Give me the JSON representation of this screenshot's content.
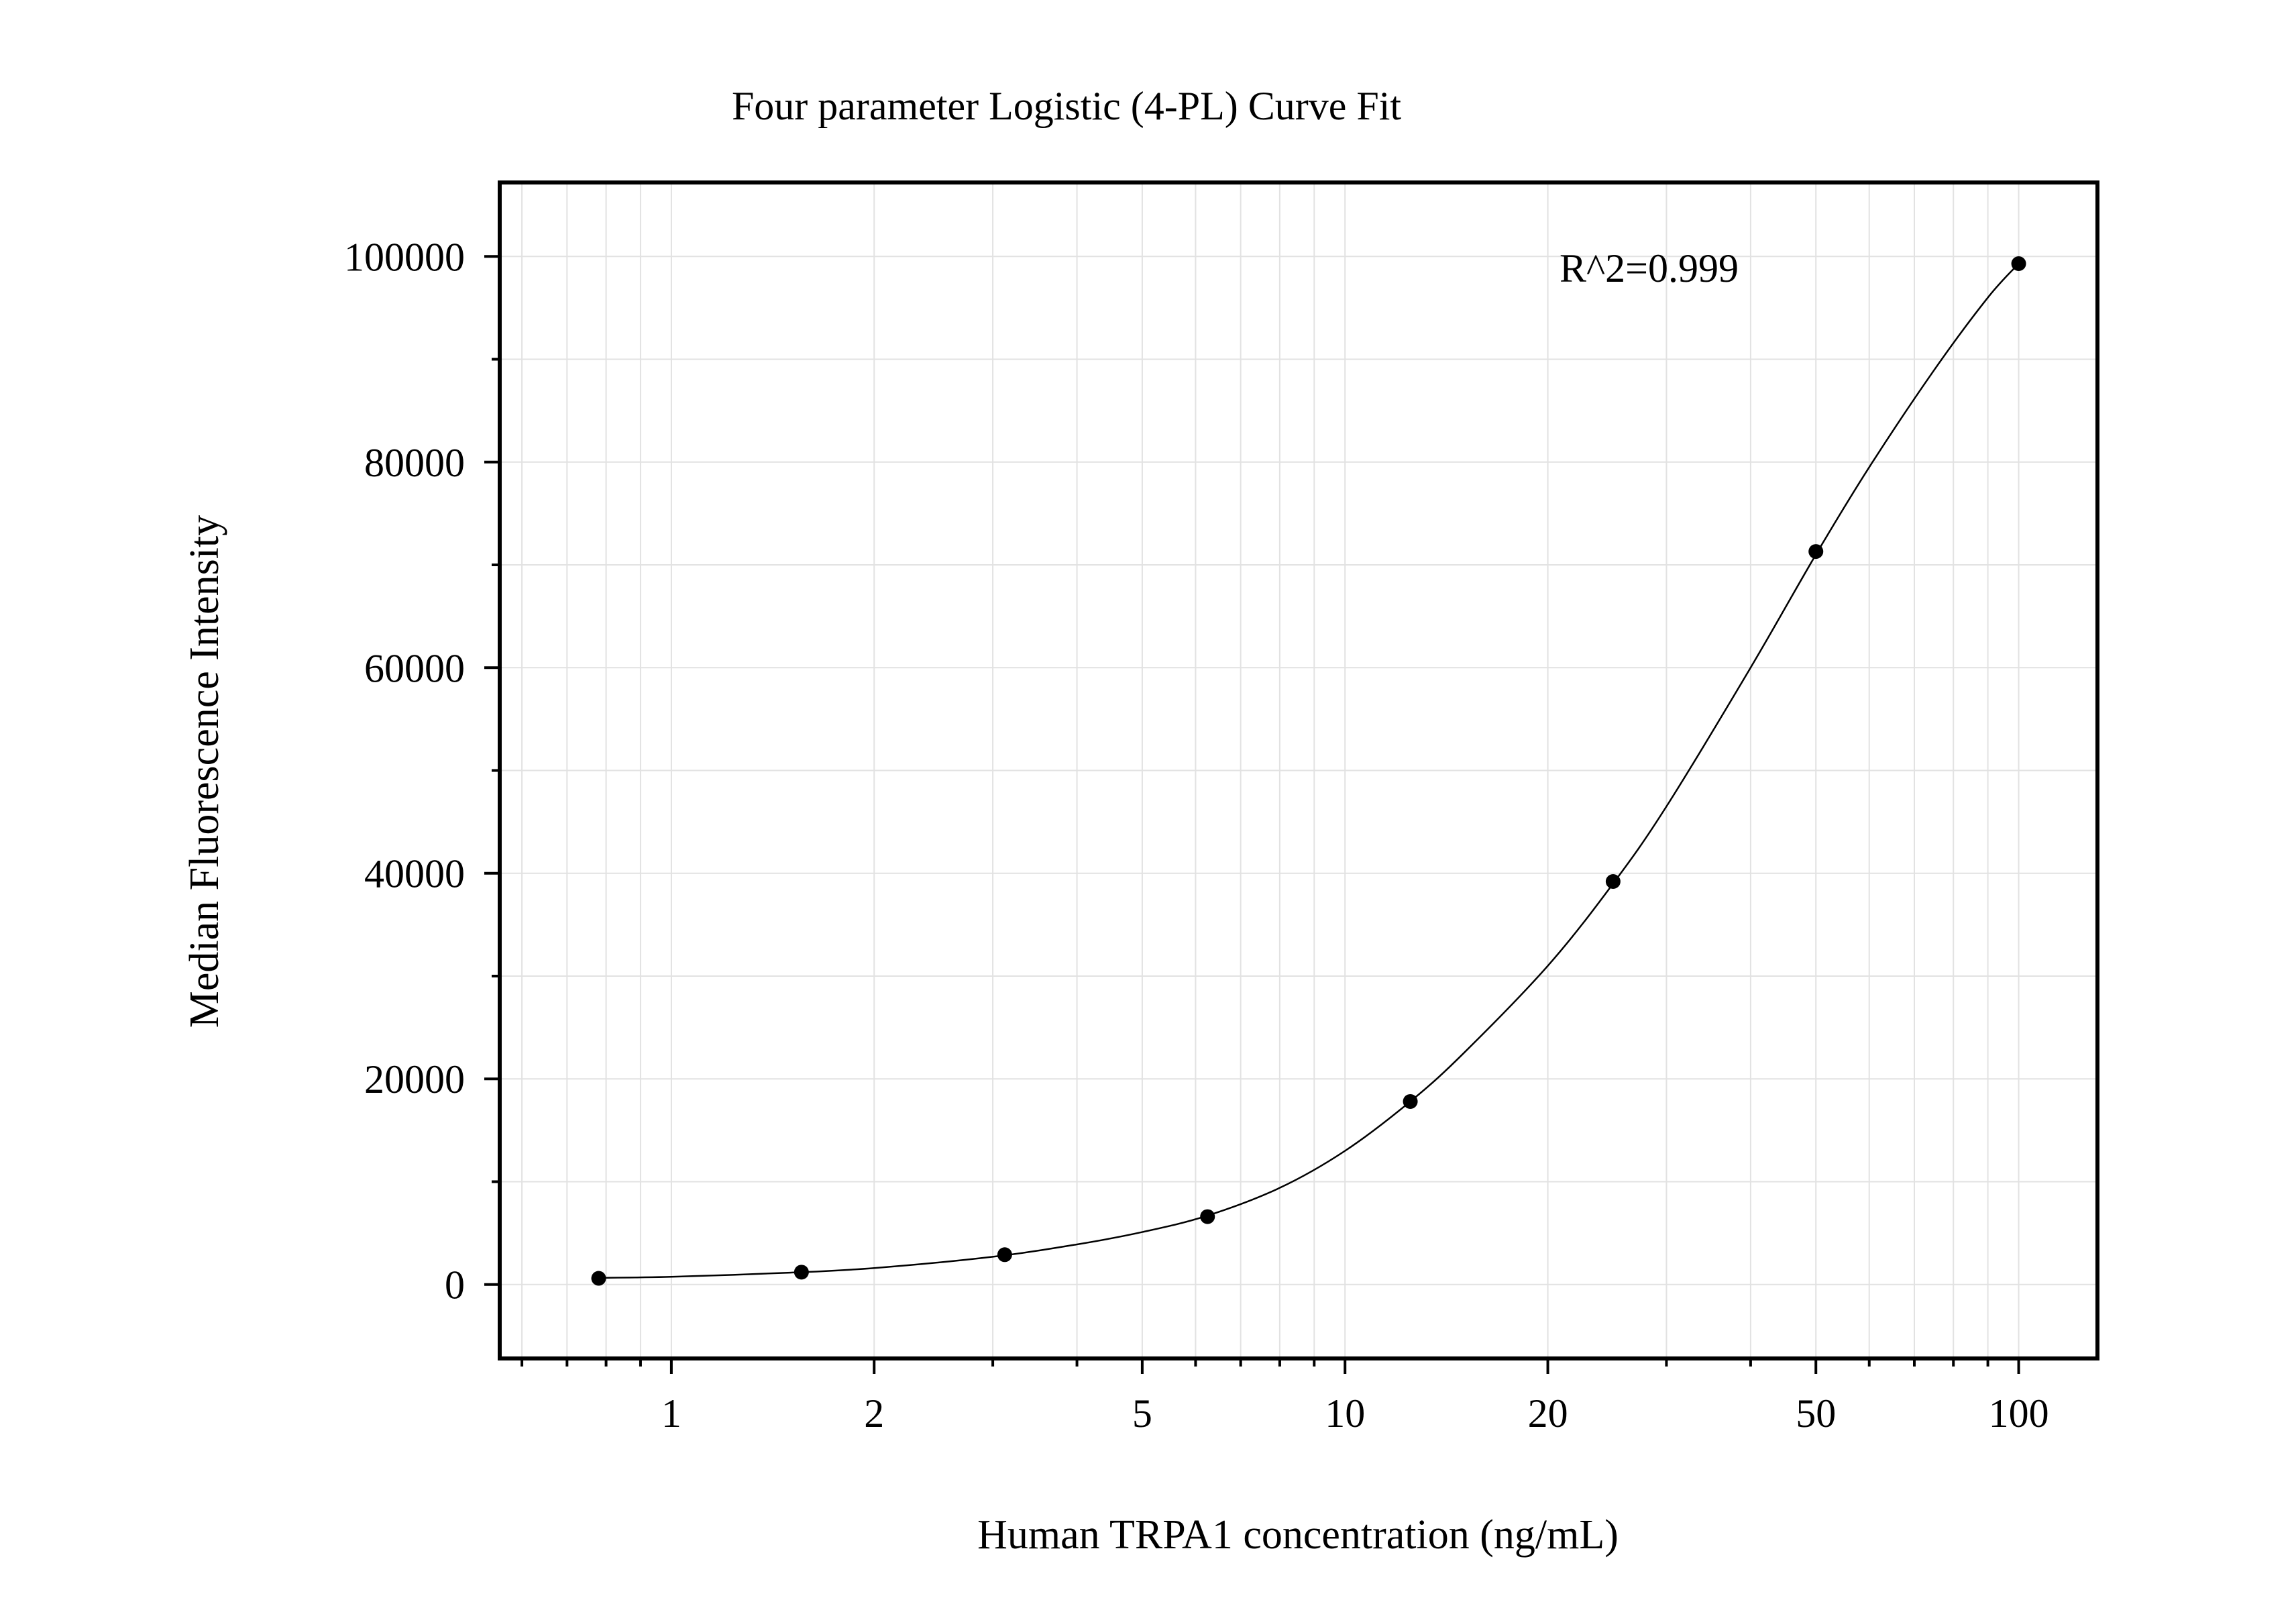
{
  "chart_data": {
    "type": "scatter",
    "title": "Four parameter Logistic (4-PL) Curve Fit",
    "xlabel": "Human TRPA1 concentration (ng/mL)",
    "ylabel": "Median Fluorescence Intensity",
    "x_scale": "log",
    "xlim": [
      0.56,
      130
    ],
    "ylim": [
      -7000,
      107000
    ],
    "x_ticks": [
      1,
      2,
      5,
      10,
      20,
      50,
      100
    ],
    "x_tick_labels": [
      "1",
      "2",
      "5",
      "10",
      "20",
      "50",
      "100"
    ],
    "y_ticks": [
      0,
      20000,
      40000,
      60000,
      80000,
      100000
    ],
    "y_tick_labels": [
      "0",
      "20000",
      "40000",
      "60000",
      "80000",
      "100000"
    ],
    "grid": true,
    "annotation": "R^2=0.999",
    "series": [
      {
        "kind": "points",
        "color": "#000000",
        "x": [
          0.78,
          1.56,
          3.125,
          6.25,
          12.5,
          25,
          50,
          100
        ],
        "y": [
          600,
          1200,
          2900,
          6600,
          17800,
          39200,
          71300,
          99300
        ]
      },
      {
        "kind": "fit-curve",
        "color": "#000000",
        "x": [
          0.78,
          1.0,
          1.5,
          2.0,
          3.0,
          4.0,
          5.0,
          6.25,
          8.0,
          10.0,
          12.5,
          15.0,
          20.0,
          25.0,
          30.0,
          40.0,
          50.0,
          60.0,
          75.0,
          90.0,
          100.0
        ],
        "y": [
          650,
          750,
          1150,
          1600,
          2700,
          3900,
          5100,
          6700,
          9400,
          13000,
          17800,
          22500,
          31000,
          39000,
          46500,
          60000,
          71000,
          79500,
          89000,
          96000,
          99300
        ]
      }
    ]
  }
}
